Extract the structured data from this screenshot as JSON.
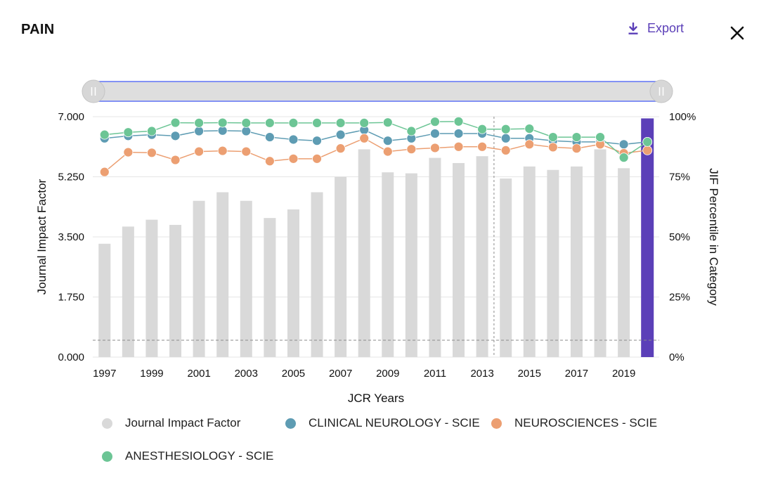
{
  "header": {
    "title": "PAIN",
    "export_label": "Export"
  },
  "colors": {
    "bar": "#d9d9d9",
    "bar_highlight": "#5b3fb8",
    "clinical_neurology": "#5e9cb3",
    "neurosciences": "#ec9f72",
    "anesthesiology": "#6cc595",
    "accent": "#5b3fb8"
  },
  "chart_data": {
    "type": "bar",
    "x": [
      1997,
      1998,
      1999,
      2000,
      2001,
      2002,
      2003,
      2004,
      2005,
      2006,
      2007,
      2008,
      2009,
      2010,
      2011,
      2012,
      2013,
      2014,
      2015,
      2016,
      2017,
      2018,
      2019,
      2020
    ],
    "x_tick_labels": [
      "1997",
      "1999",
      "2001",
      "2003",
      "2005",
      "2007",
      "2009",
      "2011",
      "2013",
      "2015",
      "2017",
      "2019"
    ],
    "xlabel": "JCR Years",
    "ylabel": "Journal Impact Factor",
    "ylabel_right": "JIF Percentile in Category",
    "ylim": [
      0,
      7
    ],
    "y_tick_labels": [
      "0.000",
      "1.750",
      "3.500",
      "5.250",
      "7.000"
    ],
    "y2lim": [
      0,
      100
    ],
    "y2_tick_labels": [
      "0%",
      "25%",
      "50%",
      "75%",
      "100%"
    ],
    "bars": {
      "name": "Journal Impact Factor",
      "values": [
        3.3,
        3.8,
        4.0,
        3.85,
        4.55,
        4.8,
        4.55,
        4.05,
        4.3,
        4.8,
        5.25,
        6.05,
        5.38,
        5.35,
        5.8,
        5.65,
        5.85,
        5.2,
        5.55,
        5.45,
        5.55,
        6.05,
        5.5,
        6.95
      ],
      "highlight_index": 23
    },
    "series": [
      {
        "name": "CLINICAL NEUROLOGY - SCIE",
        "values": [
          91,
          92,
          92.5,
          92,
          94,
          94.2,
          94,
          91.5,
          90.5,
          90,
          92.5,
          94.5,
          90,
          91,
          93,
          93,
          93,
          91,
          91,
          90,
          89.5,
          89.5,
          88.5,
          89.5
        ]
      },
      {
        "name": "NEUROSCIENCES - SCIE",
        "values": [
          77,
          85.2,
          85,
          82,
          85.5,
          85.8,
          85.5,
          81.5,
          82.5,
          82.5,
          86.8,
          91,
          85.5,
          86.5,
          87,
          87.5,
          87.5,
          86,
          88.5,
          87.3,
          86.8,
          88.5,
          84.8,
          86
        ]
      },
      {
        "name": "ANESTHESIOLOGY - SCIE",
        "values": [
          92.5,
          93.5,
          94,
          97.5,
          97.4,
          97.5,
          97.4,
          97.4,
          97.4,
          97.4,
          97.4,
          97.4,
          97.6,
          94,
          97.9,
          98,
          94.8,
          94.8,
          95,
          91.5,
          91.5,
          91.5,
          83,
          89.5
        ]
      }
    ],
    "reference_line_y2": 7,
    "vertical_marker_between": [
      2013,
      2014
    ],
    "grid": true,
    "legend": "bottom",
    "slider": {
      "range": [
        1997,
        2020
      ]
    }
  },
  "legend": [
    {
      "label": "Journal Impact Factor",
      "color": "#d9d9d9"
    },
    {
      "label": "CLINICAL NEUROLOGY - SCIE",
      "color": "#5e9cb3"
    },
    {
      "label": "NEUROSCIENCES - SCIE",
      "color": "#ec9f72"
    },
    {
      "label": "ANESTHESIOLOGY - SCIE",
      "color": "#6cc595"
    }
  ]
}
